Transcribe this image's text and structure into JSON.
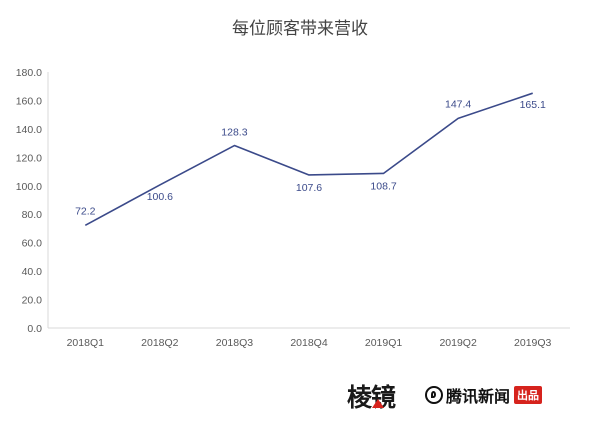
{
  "chart_data": {
    "type": "line",
    "title": "每位顾客带来营收",
    "categories": [
      "2018Q1",
      "2018Q2",
      "2018Q3",
      "2018Q4",
      "2019Q1",
      "2019Q2",
      "2019Q3"
    ],
    "series": [
      {
        "values": [
          72.2,
          100.6,
          128.3,
          107.6,
          108.7,
          147.4,
          165.1
        ]
      }
    ],
    "ylim": [
      0,
      180
    ],
    "yticks": [
      "0.0",
      "20.0",
      "40.0",
      "60.0",
      "80.0",
      "100.0",
      "120.0",
      "140.0",
      "160.0",
      "180.0"
    ],
    "grid": false,
    "line_color": "#3b4a8a"
  },
  "footer": {
    "brand_prism": "棱镜",
    "brand_tencent": "腾讯新闻",
    "badge": "出品"
  }
}
